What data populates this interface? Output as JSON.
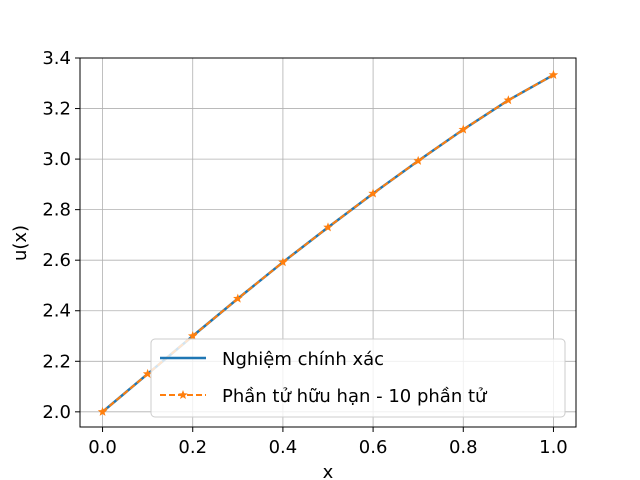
{
  "chart_data": {
    "type": "line",
    "title": "",
    "xlabel": "x",
    "ylabel": "u(x)",
    "xlim": [
      -0.05,
      1.05
    ],
    "ylim": [
      1.94,
      3.4
    ],
    "xticks": [
      0.0,
      0.2,
      0.4,
      0.6,
      0.8,
      1.0
    ],
    "xtick_labels": [
      "0.0",
      "0.2",
      "0.4",
      "0.6",
      "0.8",
      "1.0"
    ],
    "yticks": [
      2.0,
      2.2,
      2.4,
      2.6,
      2.8,
      3.0,
      3.2,
      3.4
    ],
    "ytick_labels": [
      "2.0",
      "2.2",
      "2.4",
      "2.6",
      "2.8",
      "3.0",
      "3.2",
      "3.4"
    ],
    "grid": true,
    "legend_position": "lower-right",
    "series": [
      {
        "name": "Nghiệm chính xác",
        "color": "#1f77b4",
        "style": "solid",
        "marker": "none",
        "x": [
          0.0,
          0.1,
          0.2,
          0.3,
          0.4,
          0.5,
          0.6,
          0.7,
          0.8,
          0.9,
          1.0
        ],
        "y": [
          2.0,
          2.15,
          2.3,
          2.448,
          2.592,
          2.73,
          2.864,
          2.993,
          3.117,
          3.233,
          3.333
        ]
      },
      {
        "name": "Phần tử hữu hạn - 10 phần tử",
        "color": "#ff7f0e",
        "style": "dashed",
        "marker": "star",
        "x": [
          0.0,
          0.1,
          0.2,
          0.3,
          0.4,
          0.5,
          0.6,
          0.7,
          0.8,
          0.9,
          1.0
        ],
        "y": [
          2.0,
          2.15,
          2.3,
          2.448,
          2.592,
          2.73,
          2.864,
          2.993,
          3.117,
          3.233,
          3.333
        ]
      }
    ]
  }
}
